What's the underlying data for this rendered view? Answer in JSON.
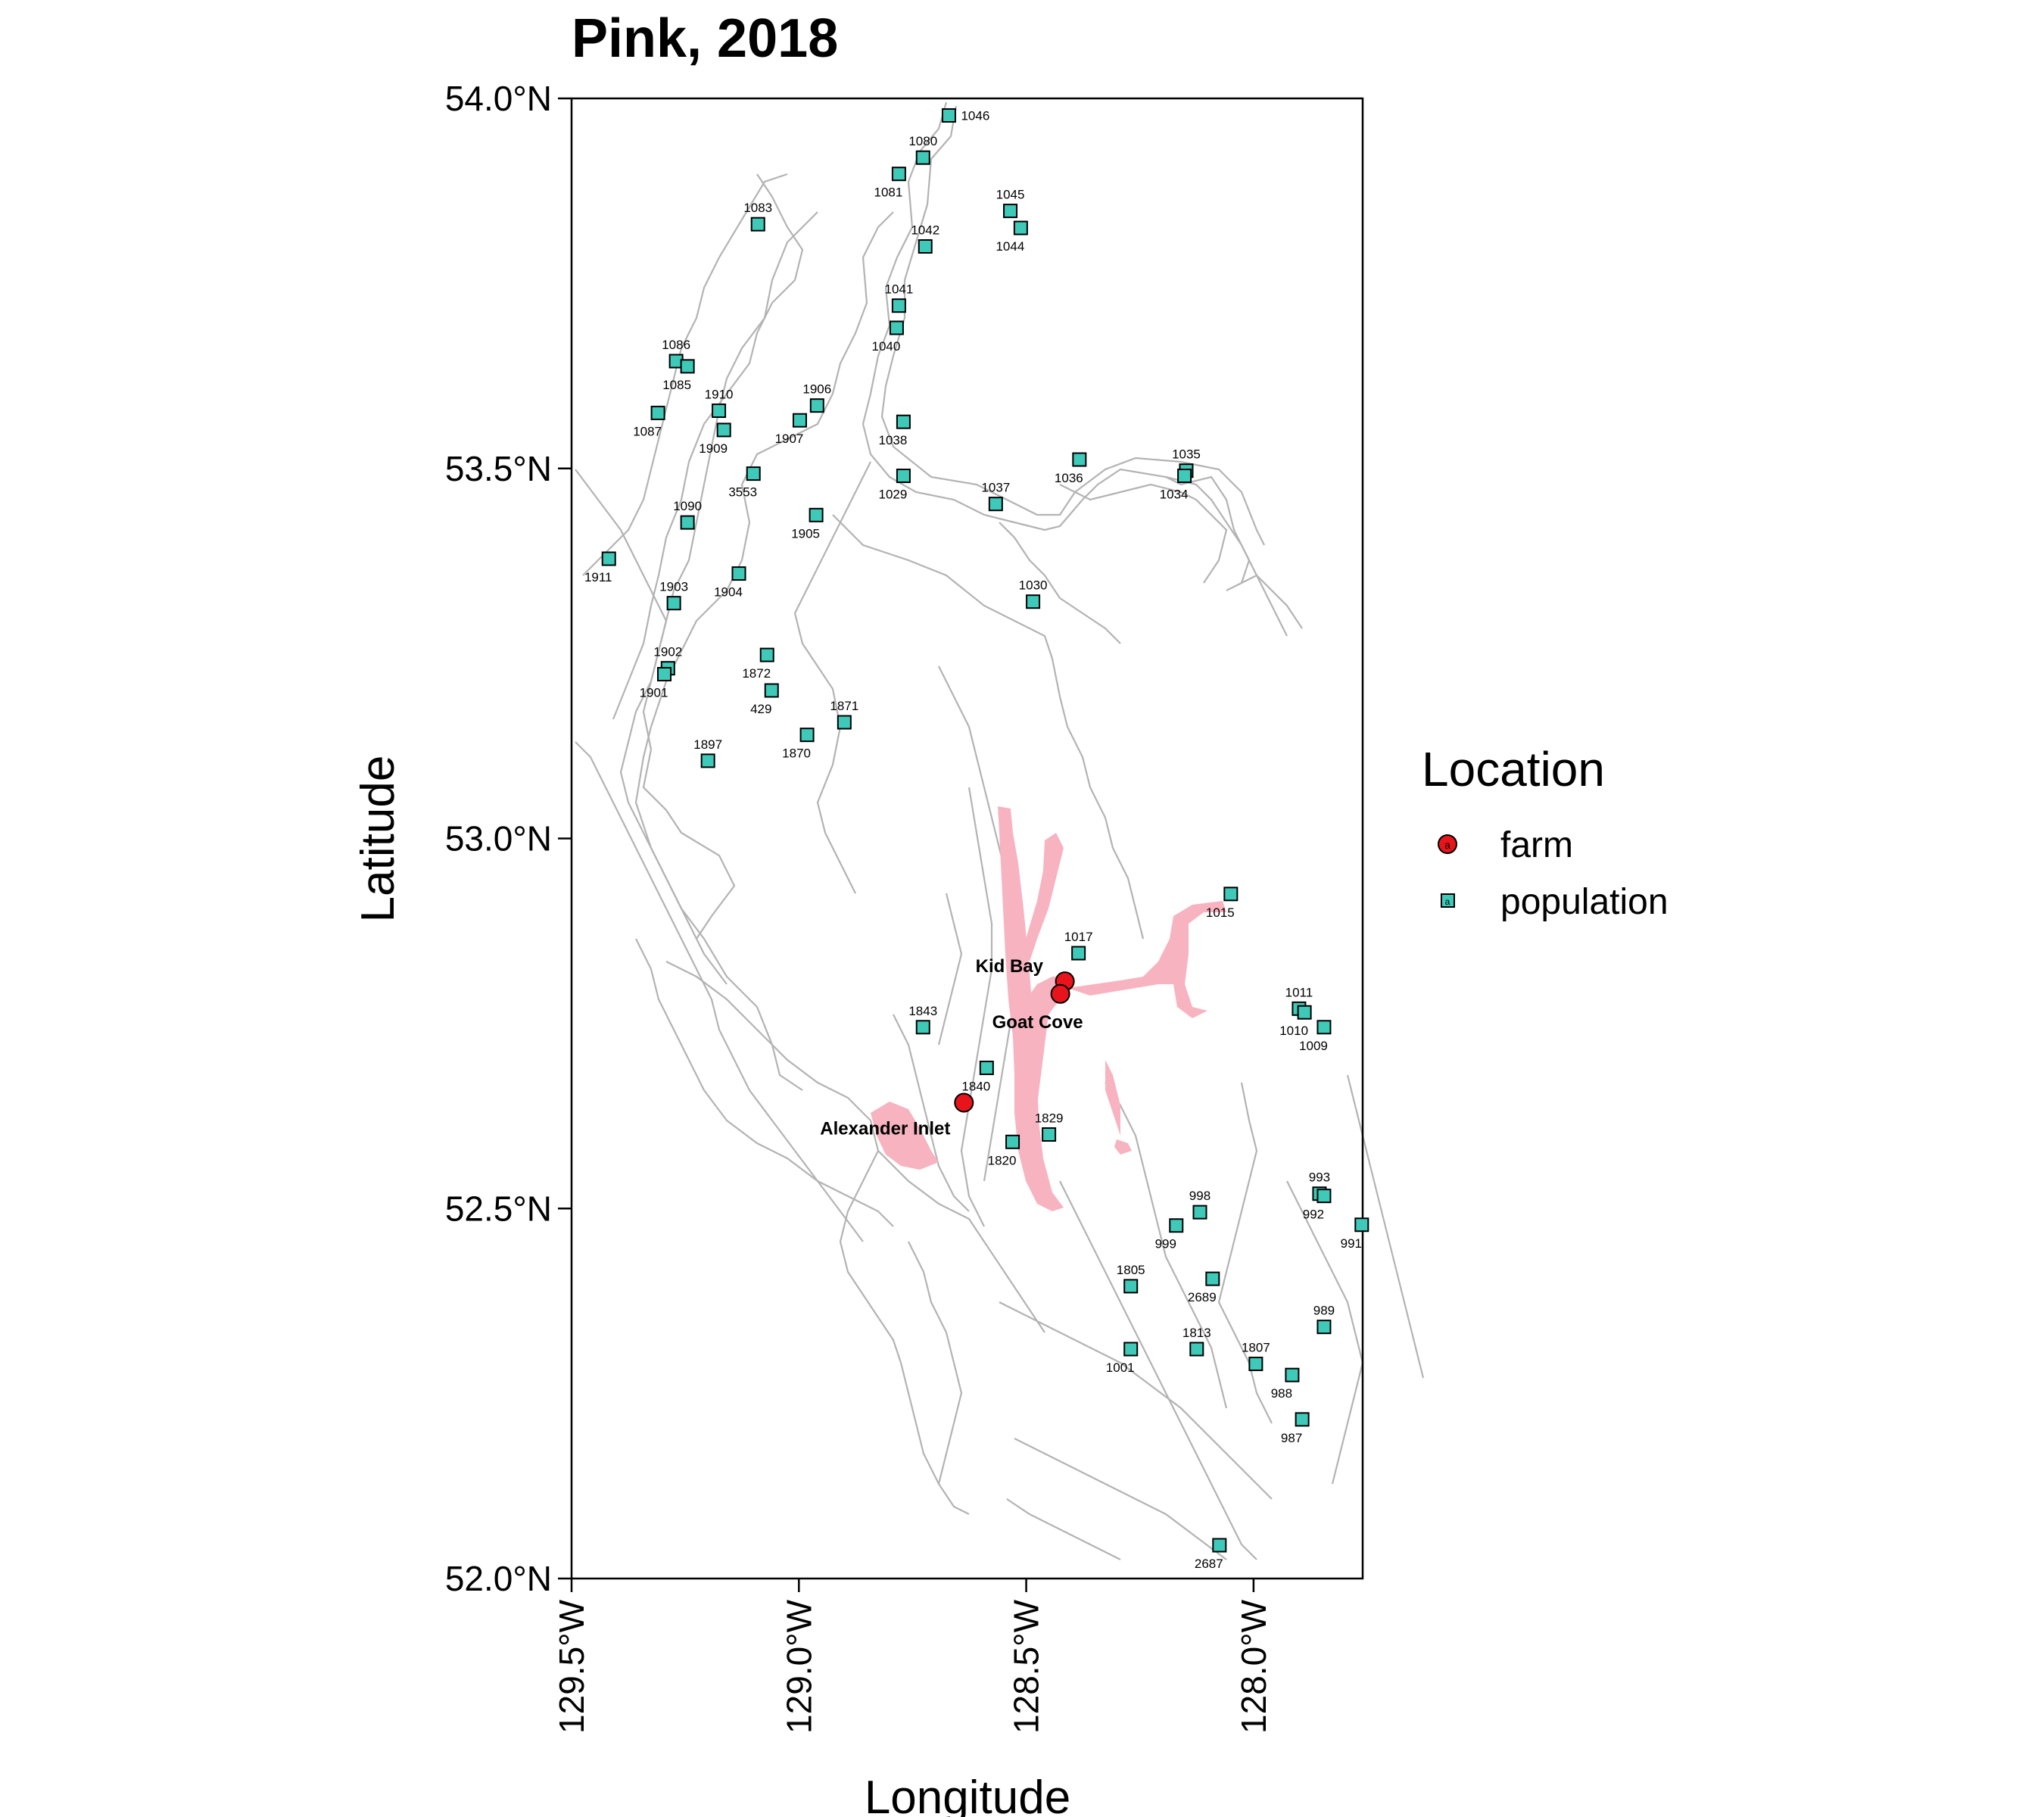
{
  "map": {
    "title": "Pink, 2018",
    "xlabel": "Longitude",
    "ylabel": "Latitude",
    "xlim": [
      -129.5,
      -127.76
    ],
    "ylim": [
      52.0,
      54.0
    ],
    "x_ticks": [
      {
        "value": -129.5,
        "label": "129.5°W"
      },
      {
        "value": -129.0,
        "label": "129.0°W"
      },
      {
        "value": -128.5,
        "label": "128.5°W"
      },
      {
        "value": -128.0,
        "label": "128.0°W"
      }
    ],
    "y_ticks": [
      {
        "value": 52.0,
        "label": "52.0°N"
      },
      {
        "value": 52.5,
        "label": "52.5°N"
      },
      {
        "value": 53.0,
        "label": "53.0°N"
      },
      {
        "value": 53.5,
        "label": "53.5°N"
      },
      {
        "value": 54.0,
        "label": "54.0°N"
      }
    ],
    "colors": {
      "population_fill": "#3ec9b8",
      "farm_fill": "#e8141b",
      "coastline": "#b3b3b3",
      "farm_zone": "#f7b3c0"
    }
  },
  "legend": {
    "title": "Location",
    "items": [
      {
        "label": "farm",
        "glyph": "a"
      },
      {
        "label": "population",
        "glyph": "a"
      }
    ]
  },
  "farms": [
    {
      "name": "Kid Bay",
      "lon": -128.415,
      "lat": 52.807
    },
    {
      "name": "Goat Cove",
      "lon": -128.425,
      "lat": 52.79
    },
    {
      "name": "Alexander Inlet",
      "lon": -128.637,
      "lat": 52.643
    }
  ],
  "populations": [
    {
      "id": "1046",
      "lon": -128.67,
      "lat": 53.977,
      "pos": "r"
    },
    {
      "id": "1080",
      "lon": -128.727,
      "lat": 53.92,
      "pos": "a"
    },
    {
      "id": "1081",
      "lon": -128.78,
      "lat": 53.898,
      "pos": "b"
    },
    {
      "id": "1045",
      "lon": -128.535,
      "lat": 53.848,
      "pos": "a"
    },
    {
      "id": "1044",
      "lon": -128.512,
      "lat": 53.825,
      "pos": "b"
    },
    {
      "id": "1083",
      "lon": -129.09,
      "lat": 53.83,
      "pos": "a"
    },
    {
      "id": "1042",
      "lon": -128.722,
      "lat": 53.8,
      "pos": "a"
    },
    {
      "id": "1041",
      "lon": -128.78,
      "lat": 53.72,
      "pos": "a"
    },
    {
      "id": "1040",
      "lon": -128.785,
      "lat": 53.69,
      "pos": "b"
    },
    {
      "id": "1086",
      "lon": -129.27,
      "lat": 53.645,
      "pos": "a"
    },
    {
      "id": "1085",
      "lon": -129.245,
      "lat": 53.638,
      "pos": "b"
    },
    {
      "id": "1087",
      "lon": -129.31,
      "lat": 53.575,
      "pos": "b"
    },
    {
      "id": "1910",
      "lon": -129.176,
      "lat": 53.578,
      "pos": "a"
    },
    {
      "id": "1909",
      "lon": -129.165,
      "lat": 53.552,
      "pos": "b"
    },
    {
      "id": "1906",
      "lon": -128.96,
      "lat": 53.585,
      "pos": "a"
    },
    {
      "id": "1907",
      "lon": -128.998,
      "lat": 53.565,
      "pos": "b"
    },
    {
      "id": "1038",
      "lon": -128.77,
      "lat": 53.563,
      "pos": "b"
    },
    {
      "id": "3553",
      "lon": -129.1,
      "lat": 53.493,
      "pos": "b"
    },
    {
      "id": "1029",
      "lon": -128.77,
      "lat": 53.49,
      "pos": "b"
    },
    {
      "id": "1036",
      "lon": -128.383,
      "lat": 53.512,
      "pos": "b"
    },
    {
      "id": "1035",
      "lon": -128.148,
      "lat": 53.497,
      "pos": "a"
    },
    {
      "id": "1034",
      "lon": -128.152,
      "lat": 53.49,
      "pos": "b"
    },
    {
      "id": "1037",
      "lon": -128.567,
      "lat": 53.452,
      "pos": "a"
    },
    {
      "id": "1090",
      "lon": -129.245,
      "lat": 53.427,
      "pos": "a"
    },
    {
      "id": "1905",
      "lon": -128.962,
      "lat": 53.437,
      "pos": "b"
    },
    {
      "id": "1911",
      "lon": -129.418,
      "lat": 53.378,
      "pos": "b"
    },
    {
      "id": "1904",
      "lon": -129.132,
      "lat": 53.358,
      "pos": "b"
    },
    {
      "id": "1903",
      "lon": -129.275,
      "lat": 53.318,
      "pos": "a"
    },
    {
      "id": "1030",
      "lon": -128.485,
      "lat": 53.32,
      "pos": "a"
    },
    {
      "id": "1902",
      "lon": -129.288,
      "lat": 53.23,
      "pos": "a"
    },
    {
      "id": "1901",
      "lon": -129.296,
      "lat": 53.222,
      "pos": "b"
    },
    {
      "id": "1872",
      "lon": -129.07,
      "lat": 53.248,
      "pos": "b"
    },
    {
      "id": "429",
      "lon": -129.06,
      "lat": 53.2,
      "pos": "b"
    },
    {
      "id": "1871",
      "lon": -128.9,
      "lat": 53.157,
      "pos": "a"
    },
    {
      "id": "1870",
      "lon": -128.982,
      "lat": 53.14,
      "pos": "b"
    },
    {
      "id": "1897",
      "lon": -129.2,
      "lat": 53.105,
      "pos": "a"
    },
    {
      "id": "1015",
      "lon": -128.05,
      "lat": 52.925,
      "pos": "b"
    },
    {
      "id": "1017",
      "lon": -128.385,
      "lat": 52.845,
      "pos": "a"
    },
    {
      "id": "1011",
      "lon": -127.9,
      "lat": 52.77,
      "pos": "a"
    },
    {
      "id": "1010",
      "lon": -127.888,
      "lat": 52.765,
      "pos": "b"
    },
    {
      "id": "1009",
      "lon": -127.845,
      "lat": 52.745,
      "pos": "b"
    },
    {
      "id": "1843",
      "lon": -128.727,
      "lat": 52.745,
      "pos": "a"
    },
    {
      "id": "1840",
      "lon": -128.587,
      "lat": 52.69,
      "pos": "b"
    },
    {
      "id": "1829",
      "lon": -128.45,
      "lat": 52.6,
      "pos": "a"
    },
    {
      "id": "1820",
      "lon": -128.53,
      "lat": 52.59,
      "pos": "b"
    },
    {
      "id": "993",
      "lon": -127.855,
      "lat": 52.52,
      "pos": "a"
    },
    {
      "id": "992",
      "lon": -127.845,
      "lat": 52.517,
      "pos": "b"
    },
    {
      "id": "998",
      "lon": -128.118,
      "lat": 52.495,
      "pos": "a"
    },
    {
      "id": "999",
      "lon": -128.17,
      "lat": 52.477,
      "pos": "b"
    },
    {
      "id": "991",
      "lon": -127.762,
      "lat": 52.478,
      "pos": "b"
    },
    {
      "id": "1805",
      "lon": -128.27,
      "lat": 52.395,
      "pos": "a"
    },
    {
      "id": "2689",
      "lon": -128.09,
      "lat": 52.405,
      "pos": "b"
    },
    {
      "id": "989",
      "lon": -127.845,
      "lat": 52.34,
      "pos": "a"
    },
    {
      "id": "1813",
      "lon": -128.125,
      "lat": 52.31,
      "pos": "a"
    },
    {
      "id": "1807",
      "lon": -127.995,
      "lat": 52.29,
      "pos": "a"
    },
    {
      "id": "1001",
      "lon": -128.27,
      "lat": 52.31,
      "pos": "b"
    },
    {
      "id": "988",
      "lon": -127.915,
      "lat": 52.275,
      "pos": "b"
    },
    {
      "id": "987",
      "lon": -127.893,
      "lat": 52.215,
      "pos": "b"
    },
    {
      "id": "2687",
      "lon": -128.075,
      "lat": 52.045,
      "pos": "b"
    }
  ]
}
